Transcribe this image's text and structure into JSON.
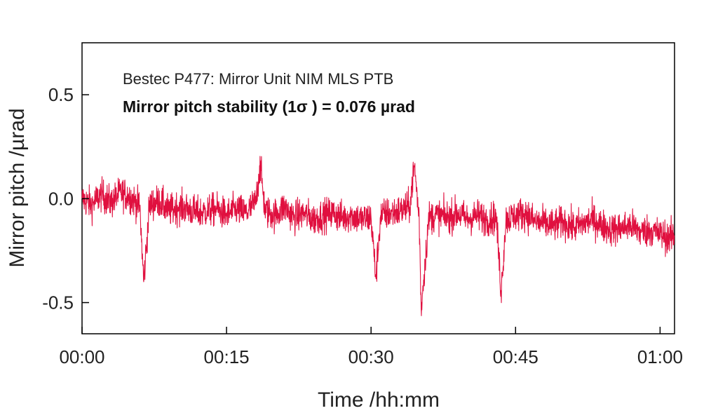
{
  "chart_data": {
    "type": "line",
    "title": "",
    "annotations": [
      "Bestec P477: Mirror Unit NIM MLS PTB",
      "Mirror pitch stability (1σ ) = 0.076 µrad"
    ],
    "xlabel": "Time /hh:mm",
    "ylabel": "Mirror pitch /µrad",
    "xlim": [
      0,
      61.5
    ],
    "ylim": [
      -0.65,
      0.75
    ],
    "x_ticks": [
      {
        "value": 0,
        "label": "00:00"
      },
      {
        "value": 15,
        "label": "00:15"
      },
      {
        "value": 30,
        "label": "00:30"
      },
      {
        "value": 45,
        "label": "00:45"
      },
      {
        "value": 60,
        "label": "01:00"
      }
    ],
    "y_ticks": [
      {
        "value": 0.5,
        "label": "0.5"
      },
      {
        "value": 0.0,
        "label": "0.0"
      },
      {
        "value": -0.5,
        "label": "-0.5"
      }
    ],
    "grid": false,
    "legend": "none",
    "colors": {
      "series": "#e0103f",
      "axes": "#000000"
    },
    "series": [
      {
        "name": "",
        "x_unit": "minutes",
        "points": [
          [
            0,
            0.0
          ],
          [
            1,
            -0.03
          ],
          [
            2,
            0.02
          ],
          [
            3,
            -0.02
          ],
          [
            4,
            0.03
          ],
          [
            5,
            0.01
          ],
          [
            6,
            -0.04
          ],
          [
            6.4,
            -0.4
          ],
          [
            7,
            -0.03
          ],
          [
            8,
            -0.01
          ],
          [
            9,
            -0.06
          ],
          [
            10,
            -0.04
          ],
          [
            11,
            -0.05
          ],
          [
            12,
            -0.07
          ],
          [
            13,
            -0.06
          ],
          [
            14,
            -0.05
          ],
          [
            15,
            -0.08
          ],
          [
            16,
            -0.05
          ],
          [
            17,
            -0.07
          ],
          [
            18,
            -0.02
          ],
          [
            18.5,
            0.16
          ],
          [
            19,
            -0.06
          ],
          [
            20,
            -0.08
          ],
          [
            21,
            -0.04
          ],
          [
            22,
            -0.09
          ],
          [
            23,
            -0.07
          ],
          [
            24,
            -0.1
          ],
          [
            25,
            -0.08
          ],
          [
            26,
            -0.07
          ],
          [
            27,
            -0.09
          ],
          [
            28,
            -0.08
          ],
          [
            29,
            -0.1
          ],
          [
            30,
            -0.09
          ],
          [
            30.5,
            -0.38
          ],
          [
            31,
            -0.08
          ],
          [
            32,
            -0.07
          ],
          [
            33,
            -0.06
          ],
          [
            34,
            -0.04
          ],
          [
            34.5,
            0.16
          ],
          [
            35,
            -0.1
          ],
          [
            35.2,
            -0.53
          ],
          [
            36,
            -0.09
          ],
          [
            37,
            -0.08
          ],
          [
            38,
            -0.09
          ],
          [
            39,
            -0.07
          ],
          [
            40,
            -0.1
          ],
          [
            41,
            -0.08
          ],
          [
            42,
            -0.1
          ],
          [
            43,
            -0.09
          ],
          [
            43.5,
            -0.45
          ],
          [
            44,
            -0.1
          ],
          [
            45,
            -0.08
          ],
          [
            46,
            -0.07
          ],
          [
            47,
            -0.11
          ],
          [
            48,
            -0.12
          ],
          [
            49,
            -0.13
          ],
          [
            50,
            -0.11
          ],
          [
            51,
            -0.14
          ],
          [
            52,
            -0.12
          ],
          [
            53,
            -0.1
          ],
          [
            54,
            -0.13
          ],
          [
            55,
            -0.15
          ],
          [
            56,
            -0.14
          ],
          [
            57,
            -0.13
          ],
          [
            58,
            -0.16
          ],
          [
            59,
            -0.15
          ],
          [
            60,
            -0.17
          ],
          [
            61,
            -0.19
          ],
          [
            61.5,
            -0.18
          ]
        ]
      }
    ]
  }
}
